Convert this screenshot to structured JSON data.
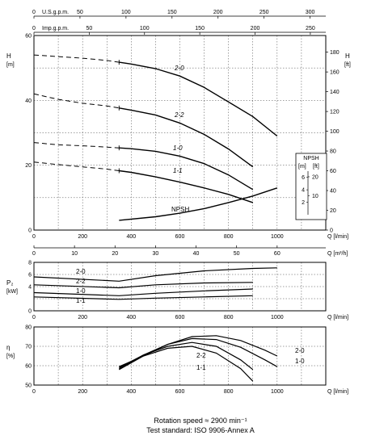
{
  "chart_data": [
    {
      "type": "line",
      "name": "head",
      "y_label": "H",
      "y_unit": "[m]",
      "y_right_label": "H",
      "y_right_unit": "[ft]",
      "ylim": [
        0,
        60
      ],
      "y_ticks": [
        "0",
        "20",
        "40",
        "60"
      ],
      "y_right_ticks": [
        "0",
        "20",
        "40",
        "60",
        "80",
        "100",
        "120",
        "140",
        "160",
        "180"
      ],
      "xlim": [
        0,
        1200
      ],
      "x_ticks": [
        "0",
        "200",
        "400",
        "600",
        "800",
        "1000"
      ],
      "x_label": "Q [l/min]",
      "x2_label": "Q [m³/h]",
      "x2_ticks": [
        "0",
        "10",
        "20",
        "30",
        "40",
        "50",
        "60"
      ],
      "top_axis1_label": "U.S.g.p.m.",
      "top_axis1_ticks": [
        "0",
        "50",
        "100",
        "150",
        "200",
        "250",
        "300"
      ],
      "top_axis2_label": "Imp.g.p.m.",
      "top_axis2_ticks": [
        "0",
        "50",
        "100",
        "150",
        "200",
        "250"
      ],
      "series": [
        {
          "name": "2-0",
          "x": [
            0,
            100,
            200,
            300,
            400,
            500,
            600,
            700,
            800,
            900,
            1000
          ],
          "y": [
            54,
            53.5,
            53,
            52.3,
            51.2,
            49.8,
            47.5,
            44,
            39.5,
            35,
            29
          ],
          "dashed_until": 350
        },
        {
          "name": "2-2",
          "x": [
            0,
            100,
            200,
            300,
            400,
            500,
            600,
            700,
            800,
            900
          ],
          "y": [
            42,
            40.3,
            39.1,
            38.3,
            37,
            35.5,
            33,
            29.5,
            25,
            19.5
          ],
          "dashed_until": 350
        },
        {
          "name": "1-0",
          "x": [
            0,
            100,
            200,
            300,
            400,
            500,
            600,
            700,
            800,
            900
          ],
          "y": [
            27,
            26.3,
            26,
            25.6,
            25.1,
            24.3,
            22.8,
            20.5,
            17,
            12.5
          ],
          "dashed_until": 350
        },
        {
          "name": "1-1",
          "x": [
            0,
            100,
            200,
            300,
            400,
            500,
            600,
            700,
            800,
            900
          ],
          "y": [
            21,
            20.2,
            19.5,
            18.8,
            17.8,
            16.4,
            14.8,
            13,
            11,
            8.5
          ],
          "dashed_until": 350
        }
      ],
      "npsh": {
        "name": "NPSH",
        "x": [
          350,
          500,
          600,
          700,
          800,
          900,
          1000
        ],
        "y": [
          3,
          4.1,
          5.2,
          6.6,
          8.5,
          10.5,
          13
        ],
        "inset_label": "NPSH",
        "inset_units": [
          "[m]",
          "[ft]"
        ],
        "inset_m_ticks": [
          "2",
          "4",
          "6"
        ],
        "inset_ft_ticks": [
          "10",
          "20"
        ]
      }
    },
    {
      "type": "line",
      "name": "power",
      "y_label": "P₂",
      "y_unit": "[kW]",
      "ylim": [
        0,
        8
      ],
      "y_ticks": [
        "0",
        "4",
        "6",
        "8"
      ],
      "xlim": [
        0,
        1200
      ],
      "x_ticks": [
        "0",
        "200",
        "400",
        "600",
        "800",
        "1000"
      ],
      "x_label": "Q [l/min]",
      "series": [
        {
          "name": "2-0",
          "x": [
            0,
            350,
            500,
            700,
            900,
            1000
          ],
          "y": [
            5.6,
            4.9,
            5.8,
            6.6,
            7.0,
            7.1
          ]
        },
        {
          "name": "2-2",
          "x": [
            0,
            350,
            500,
            700,
            900
          ],
          "y": [
            4.3,
            3.8,
            4.3,
            4.6,
            4.7
          ]
        },
        {
          "name": "1-0",
          "x": [
            0,
            350,
            500,
            700,
            900
          ],
          "y": [
            3.0,
            2.5,
            2.9,
            3.3,
            3.6
          ]
        },
        {
          "name": "1-1",
          "x": [
            0,
            350,
            500,
            700,
            900
          ],
          "y": [
            2.3,
            1.9,
            2.1,
            2.3,
            2.5
          ]
        }
      ]
    },
    {
      "type": "line",
      "name": "efficiency",
      "y_label": "η",
      "y_unit": "[%]",
      "ylim": [
        50,
        80
      ],
      "y_ticks": [
        "50",
        "60",
        "70",
        "80"
      ],
      "xlim": [
        0,
        1200
      ],
      "x_ticks": [
        "0",
        "200",
        "400",
        "600",
        "800",
        "1000"
      ],
      "x_label": "Q [l/min]",
      "series": [
        {
          "name": "2-0",
          "x": [
            350,
            450,
            550,
            650,
            750,
            850,
            950,
            1000
          ],
          "y": [
            58,
            65,
            71,
            75,
            75.5,
            73,
            68,
            65
          ]
        },
        {
          "name": "1-0",
          "x": [
            350,
            450,
            550,
            650,
            750,
            850,
            950,
            1000
          ],
          "y": [
            58.5,
            65.5,
            71,
            74,
            73.5,
            69.5,
            63,
            59.5
          ]
        },
        {
          "name": "2-2",
          "x": [
            350,
            450,
            550,
            650,
            750,
            850,
            900
          ],
          "y": [
            59,
            65.5,
            70,
            72,
            70,
            63,
            58
          ]
        },
        {
          "name": "1-1",
          "x": [
            350,
            450,
            550,
            650,
            750,
            850,
            900
          ],
          "y": [
            59.5,
            65,
            69,
            70,
            66.5,
            58.5,
            52
          ]
        }
      ]
    }
  ],
  "caption": {
    "line1": "Rotation speed ≈ 2900 min⁻¹",
    "line2": "Test standard: ISO 9906-Annex A"
  }
}
